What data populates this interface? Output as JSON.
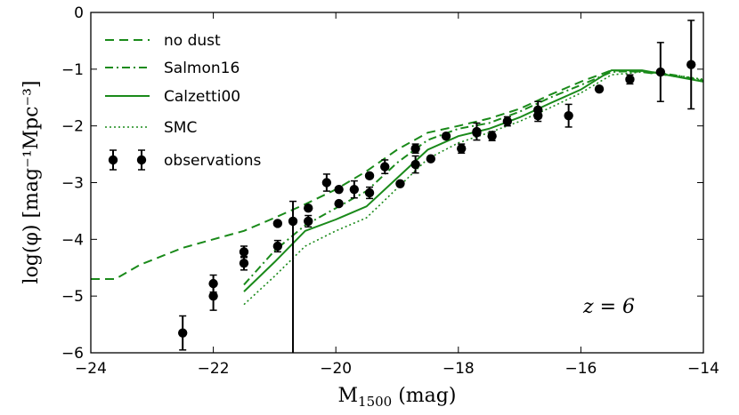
{
  "chart_data": {
    "type": "line",
    "xlabel": "M_1500 (mag)",
    "xlabel_main": "M",
    "xlabel_sub": "1500",
    "xlabel_unit": " (mag)",
    "ylabel": "log(φ) [mag⁻¹Mpc⁻³]",
    "xlim": [
      -24,
      -14
    ],
    "ylim": [
      -6,
      0
    ],
    "xticks": [
      -24,
      -22,
      -20,
      -18,
      -16,
      -14
    ],
    "yticks": [
      0,
      -1,
      -2,
      -3,
      -4,
      -5,
      -6
    ],
    "xtick_labels": [
      "−24",
      "−22",
      "−20",
      "−18",
      "−16",
      "−14"
    ],
    "ytick_labels": [
      "0",
      "−1",
      "−2",
      "−3",
      "−4",
      "−5",
      "−6"
    ],
    "annotation": "z = 6",
    "legend_position": "top-left",
    "series": [
      {
        "name": "no dust",
        "style": "dashed",
        "color": "#1a8a1a",
        "x": [
          -24,
          -23.6,
          -23.2,
          -22.5,
          -22,
          -21.5,
          -21,
          -20.5,
          -20,
          -19.5,
          -19,
          -18.5,
          -18,
          -17.5,
          -17,
          -16.5,
          -16,
          -15.5,
          -15,
          -14.5,
          -14
        ],
        "y": [
          -4.7,
          -4.7,
          -4.45,
          -4.15,
          -4.0,
          -3.85,
          -3.62,
          -3.38,
          -3.12,
          -2.8,
          -2.42,
          -2.12,
          -2.0,
          -1.87,
          -1.7,
          -1.45,
          -1.22,
          -1.02,
          -1.05,
          -1.12,
          -1.2
        ]
      },
      {
        "name": "Salmon16",
        "style": "dashdot",
        "color": "#1a8a1a",
        "x": [
          -21.5,
          -21,
          -20.5,
          -20,
          -19.5,
          -19,
          -18.5,
          -18,
          -17.5,
          -17,
          -16.5,
          -16,
          -15.5,
          -15,
          -14.5,
          -14
        ],
        "y": [
          -4.8,
          -4.2,
          -3.75,
          -3.45,
          -3.15,
          -2.65,
          -2.25,
          -2.05,
          -1.95,
          -1.75,
          -1.5,
          -1.28,
          -1.05,
          -1.03,
          -1.1,
          -1.2
        ]
      },
      {
        "name": "Calzetti00",
        "style": "solid",
        "color": "#1a8a1a",
        "x": [
          -21.5,
          -21,
          -20.5,
          -20,
          -19.5,
          -19,
          -18.5,
          -18,
          -17.5,
          -17,
          -16.5,
          -16,
          -15.5,
          -15,
          -14.5,
          -14
        ],
        "y": [
          -4.92,
          -4.4,
          -3.85,
          -3.65,
          -3.42,
          -2.92,
          -2.42,
          -2.18,
          -2.05,
          -1.85,
          -1.6,
          -1.36,
          -1.02,
          -1.02,
          -1.12,
          -1.22
        ]
      },
      {
        "name": "SMC",
        "style": "dotted",
        "color": "#1a8a1a",
        "x": [
          -21.5,
          -21,
          -20.5,
          -20,
          -19.5,
          -19,
          -18.5,
          -18,
          -17.5,
          -17,
          -16.5,
          -16,
          -15.5,
          -15,
          -14.5,
          -14
        ],
        "y": [
          -5.15,
          -4.65,
          -4.12,
          -3.85,
          -3.62,
          -3.1,
          -2.58,
          -2.3,
          -2.12,
          -1.92,
          -1.68,
          -1.42,
          -1.1,
          -1.05,
          -1.1,
          -1.18
        ]
      }
    ],
    "observations": {
      "name": "observations",
      "color": "#000000",
      "points": [
        {
          "x": -22.5,
          "y": -5.65,
          "err": 0.3
        },
        {
          "x": -22.0,
          "y": -4.78,
          "err": 0.15
        },
        {
          "x": -22.0,
          "y": -5.0,
          "err": 0.25
        },
        {
          "x": -21.5,
          "y": -4.22,
          "err": 0.1
        },
        {
          "x": -21.5,
          "y": -4.42,
          "err": 0.12
        },
        {
          "x": -20.95,
          "y": -3.72,
          "err": 0.0
        },
        {
          "x": -20.95,
          "y": -4.12,
          "err": 0.1
        },
        {
          "x": -20.7,
          "y": -3.68,
          "err": 0.35,
          "errlo": 2.4
        },
        {
          "x": -20.45,
          "y": -3.45,
          "err": 0.0
        },
        {
          "x": -20.45,
          "y": -3.68,
          "err": 0.1
        },
        {
          "x": -20.15,
          "y": -3.0,
          "err": 0.15
        },
        {
          "x": -19.95,
          "y": -3.12,
          "err": 0.0
        },
        {
          "x": -19.95,
          "y": -3.37,
          "err": 0.0
        },
        {
          "x": -19.7,
          "y": -3.12,
          "err": 0.15
        },
        {
          "x": -19.45,
          "y": -2.88,
          "err": 0.0
        },
        {
          "x": -19.45,
          "y": -3.18,
          "err": 0.1
        },
        {
          "x": -19.2,
          "y": -2.72,
          "err": 0.12
        },
        {
          "x": -18.95,
          "y": -3.02,
          "err": 0.0
        },
        {
          "x": -18.7,
          "y": -2.4,
          "err": 0.08
        },
        {
          "x": -18.7,
          "y": -2.68,
          "err": 0.15
        },
        {
          "x": -18.45,
          "y": -2.58,
          "err": 0.0
        },
        {
          "x": -18.2,
          "y": -2.18,
          "err": 0.0
        },
        {
          "x": -17.95,
          "y": -2.4,
          "err": 0.08
        },
        {
          "x": -17.7,
          "y": -2.1,
          "err": 0.15
        },
        {
          "x": -17.7,
          "y": -2.12,
          "err": 0.05
        },
        {
          "x": -17.45,
          "y": -2.18,
          "err": 0.08
        },
        {
          "x": -17.2,
          "y": -1.92,
          "err": 0.08
        },
        {
          "x": -16.7,
          "y": -1.72,
          "err": 0.15
        },
        {
          "x": -16.7,
          "y": -1.82,
          "err": 0.1
        },
        {
          "x": -16.2,
          "y": -1.82,
          "err": 0.2
        },
        {
          "x": -15.7,
          "y": -1.35,
          "err": 0.0
        },
        {
          "x": -15.2,
          "y": -1.18,
          "err": 0.08
        },
        {
          "x": -14.7,
          "y": -1.05,
          "err": 0.52
        },
        {
          "x": -14.2,
          "y": -0.92,
          "err": 0.78
        }
      ]
    }
  }
}
